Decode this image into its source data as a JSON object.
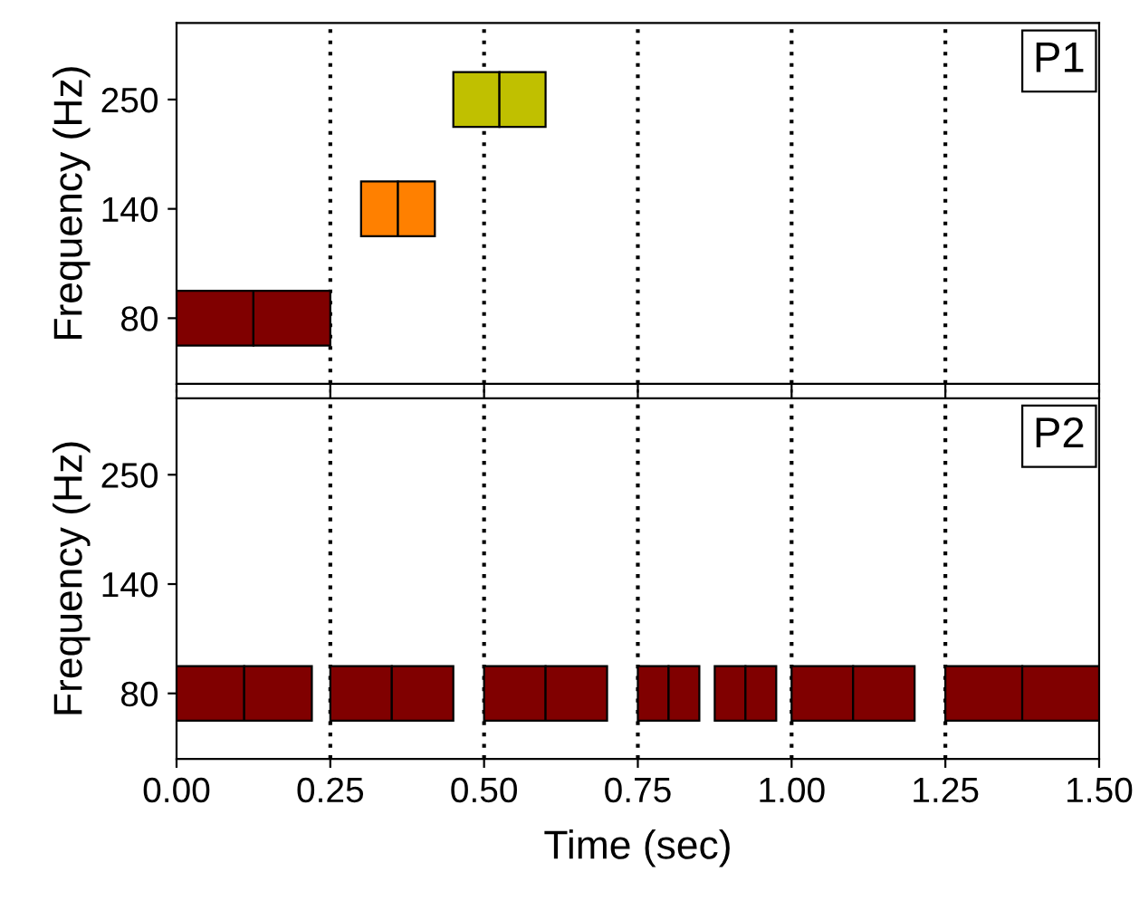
{
  "chart_data": [
    {
      "type": "bar",
      "orientation": "horizontal",
      "categories": [
        "250",
        "140",
        "80"
      ],
      "ylabel": "Frequency (Hz)",
      "xlim": [
        0,
        1.5
      ],
      "xticks": [
        {
          "value": 0,
          "label": null
        },
        {
          "value": 0.25,
          "label": null
        },
        {
          "value": 0.5,
          "label": null
        },
        {
          "value": 0.75,
          "label": null
        },
        {
          "value": 1.0,
          "label": null
        },
        {
          "value": 1.25,
          "label": null
        },
        {
          "value": 1.5,
          "label": null
        }
      ],
      "tick_labels": "y",
      "annotations": [
        "P1"
      ],
      "ref_lines": [
        {
          "axis": "x",
          "value": 0.25,
          "color": "#000000",
          "line_style": "dotted"
        },
        {
          "axis": "x",
          "value": 0.5,
          "color": "#000000",
          "line_style": "dotted"
        },
        {
          "axis": "x",
          "value": 0.75,
          "color": "#000000",
          "line_style": "dotted"
        },
        {
          "axis": "x",
          "value": 1.0,
          "color": "#000000",
          "line_style": "dotted"
        },
        {
          "axis": "x",
          "value": 1.25,
          "color": "#000000",
          "line_style": "dotted"
        }
      ],
      "series": [
        {
          "color": "#800000",
          "base": [
            null,
            null,
            0
          ],
          "values": [
            null,
            null,
            0.125
          ]
        },
        {
          "color": "#800000",
          "base": [
            null,
            null,
            0.125
          ],
          "values": [
            null,
            null,
            0.125
          ]
        },
        {
          "color": "#ff8000",
          "base": [
            null,
            0.3,
            null
          ],
          "values": [
            null,
            0.06,
            null
          ]
        },
        {
          "color": "#ff8000",
          "base": [
            null,
            0.36,
            null
          ],
          "values": [
            null,
            0.06,
            null
          ]
        },
        {
          "color": "#c0c000",
          "base": [
            0.45,
            null,
            null
          ],
          "values": [
            0.075,
            null,
            null
          ]
        },
        {
          "color": "#c0c000",
          "base": [
            0.525,
            null,
            null
          ],
          "values": [
            0.075,
            null,
            null
          ]
        }
      ]
    },
    {
      "type": "bar",
      "orientation": "horizontal",
      "categories": [
        "250",
        "140",
        "80"
      ],
      "ylabel": "Frequency (Hz)",
      "xlabel": "Time (sec)",
      "xlim": [
        0,
        1.5
      ],
      "xticks": [
        {
          "value": 0,
          "label": "0.00"
        },
        {
          "value": 0.25,
          "label": "0.25"
        },
        {
          "value": 0.5,
          "label": "0.50"
        },
        {
          "value": 0.75,
          "label": "0.75"
        },
        {
          "value": 1.0,
          "label": "1.00"
        },
        {
          "value": 1.25,
          "label": "1.25"
        },
        {
          "value": 1.5,
          "label": "1.50"
        }
      ],
      "annotations": [
        "P2"
      ],
      "ref_lines": [
        {
          "axis": "x",
          "value": 0.25,
          "color": "#000000",
          "line_style": "dotted"
        },
        {
          "axis": "x",
          "value": 0.5,
          "color": "#000000",
          "line_style": "dotted"
        },
        {
          "axis": "x",
          "value": 0.75,
          "color": "#000000",
          "line_style": "dotted"
        },
        {
          "axis": "x",
          "value": 1.0,
          "color": "#000000",
          "line_style": "dotted"
        },
        {
          "axis": "x",
          "value": 1.25,
          "color": "#000000",
          "line_style": "dotted"
        }
      ],
      "series": [
        {
          "color": "#800000",
          "base": [
            null,
            null,
            0
          ],
          "values": [
            null,
            null,
            0.11
          ]
        },
        {
          "color": "#800000",
          "base": [
            null,
            null,
            0.11
          ],
          "values": [
            null,
            null,
            0.11
          ]
        },
        {
          "color": "#800000",
          "base": [
            null,
            null,
            0.25
          ],
          "values": [
            null,
            null,
            0.1
          ]
        },
        {
          "color": "#800000",
          "base": [
            null,
            null,
            0.35
          ],
          "values": [
            null,
            null,
            0.1
          ]
        },
        {
          "color": "#800000",
          "base": [
            null,
            null,
            0.5
          ],
          "values": [
            null,
            null,
            0.1
          ]
        },
        {
          "color": "#800000",
          "base": [
            null,
            null,
            0.6
          ],
          "values": [
            null,
            null,
            0.1
          ]
        },
        {
          "color": "#800000",
          "base": [
            null,
            null,
            0.75
          ],
          "values": [
            null,
            null,
            0.05
          ]
        },
        {
          "color": "#800000",
          "base": [
            null,
            null,
            0.8
          ],
          "values": [
            null,
            null,
            0.05
          ]
        },
        {
          "color": "#800000",
          "base": [
            null,
            null,
            0.875
          ],
          "values": [
            null,
            null,
            0.05
          ]
        },
        {
          "color": "#800000",
          "base": [
            null,
            null,
            0.925
          ],
          "values": [
            null,
            null,
            0.05
          ]
        },
        {
          "color": "#800000",
          "base": [
            null,
            null,
            1.0
          ],
          "values": [
            null,
            null,
            0.1
          ]
        },
        {
          "color": "#800000",
          "base": [
            null,
            null,
            1.1
          ],
          "values": [
            null,
            null,
            0.1
          ]
        },
        {
          "color": "#800000",
          "base": [
            null,
            null,
            1.25
          ],
          "values": [
            null,
            null,
            0.125
          ]
        },
        {
          "color": "#800000",
          "base": [
            null,
            null,
            1.375
          ],
          "values": [
            null,
            null,
            0.125
          ]
        }
      ]
    }
  ]
}
